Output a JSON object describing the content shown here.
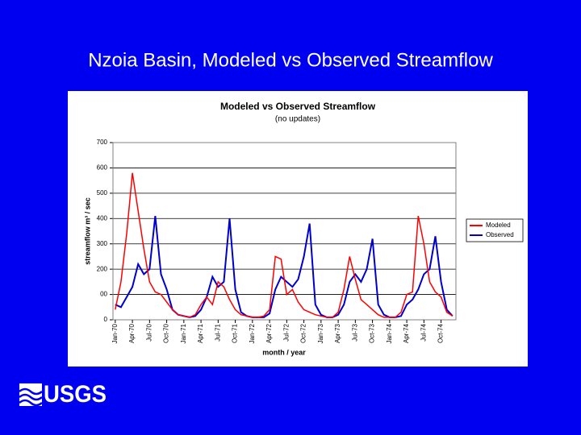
{
  "slide_title": "Nzoia Basin, Modeled vs Observed Streamflow",
  "logo": "USGS",
  "chart_data": {
    "type": "line",
    "title": "Modeled vs Observed Streamflow",
    "subtitle": "(no updates)",
    "y_label": "streamflow m³ / sec",
    "x_label": "month / year",
    "categories": [
      "Jan-70",
      null,
      null,
      "Apr-70",
      null,
      null,
      "Jul-70",
      null,
      null,
      "Oct-70",
      null,
      null,
      "Jan-71",
      null,
      null,
      "Apr-71",
      null,
      null,
      "Jul-71",
      null,
      null,
      "Oct-71",
      null,
      null,
      "Jan-72",
      null,
      null,
      "Apr-72",
      null,
      null,
      "Jul-72",
      null,
      null,
      "Oct-72",
      null,
      null,
      "Jan-73",
      null,
      null,
      "Apr-73",
      null,
      null,
      "Jul-73",
      null,
      null,
      "Oct-73",
      null,
      null,
      "Jan-74",
      null,
      null,
      "Apr-74",
      null,
      null,
      "Jul-74",
      null,
      null,
      "Oct-74",
      null,
      null
    ],
    "series": [
      {
        "name": "Modeled",
        "color": "#ff0000",
        "values": [
          40,
          150,
          340,
          580,
          430,
          280,
          150,
          110,
          100,
          70,
          40,
          20,
          15,
          10,
          20,
          60,
          90,
          60,
          150,
          130,
          80,
          40,
          20,
          15,
          10,
          10,
          15,
          40,
          250,
          240,
          100,
          120,
          70,
          40,
          30,
          20,
          15,
          10,
          10,
          30,
          120,
          250,
          160,
          80,
          60,
          40,
          20,
          10,
          10,
          10,
          30,
          100,
          110,
          410,
          300,
          150,
          110,
          90,
          30,
          15
        ]
      },
      {
        "name": "Observed",
        "color": "#0000cc",
        "values": [
          60,
          50,
          90,
          130,
          220,
          180,
          200,
          410,
          180,
          120,
          40,
          20,
          15,
          10,
          15,
          40,
          90,
          170,
          130,
          150,
          400,
          120,
          30,
          15,
          10,
          10,
          10,
          25,
          120,
          170,
          150,
          130,
          160,
          250,
          380,
          60,
          20,
          10,
          10,
          20,
          60,
          150,
          180,
          150,
          200,
          320,
          60,
          20,
          10,
          10,
          15,
          60,
          80,
          120,
          180,
          200,
          330,
          150,
          40,
          15
        ]
      }
    ],
    "ylim": [
      0,
      700
    ],
    "yticks": [
      0,
      {
        "value": 100,
        "label": "00"
      },
      200,
      300,
      400,
      500,
      600,
      700
    ],
    "grid": true,
    "legend": "right"
  }
}
